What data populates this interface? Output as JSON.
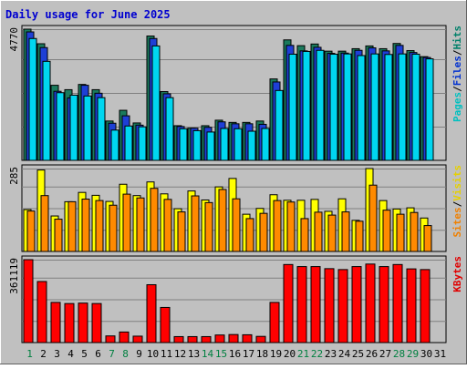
{
  "title": "Daily usage for June 2025",
  "chart_data": [
    {
      "type": "bar",
      "panel": "hits-files-pages",
      "categories": [
        "1",
        "2",
        "3",
        "4",
        "5",
        "6",
        "7",
        "8",
        "9",
        "10",
        "11",
        "12",
        "13",
        "14",
        "15",
        "16",
        "17",
        "18",
        "19",
        "20",
        "21",
        "22",
        "23",
        "24",
        "25",
        "26",
        "27",
        "28",
        "29",
        "30",
        "31"
      ],
      "weekend_days": [
        "1",
        "7",
        "8",
        "14",
        "15",
        "21",
        "22",
        "28",
        "29"
      ],
      "ymax_label": "4770",
      "ylim": [
        0,
        4770
      ],
      "ylabels": [
        {
          "text": "Pages",
          "color": "#00c0c0"
        },
        {
          "text": "/",
          "color": "#000000"
        },
        {
          "text": "Files",
          "color": "#0030d0"
        },
        {
          "text": "/",
          "color": "#000000"
        },
        {
          "text": "Hits",
          "color": "#00806a"
        }
      ],
      "series": [
        {
          "key": "Hits",
          "color": "#1a7a5c",
          "values": [
            4770,
            4240,
            2730,
            2570,
            2760,
            2570,
            1430,
            1820,
            1360,
            4520,
            2500,
            1260,
            1170,
            1260,
            1460,
            1380,
            1380,
            1430,
            2960,
            4380,
            4170,
            4230,
            3970,
            3970,
            4060,
            4160,
            4060,
            4250,
            3990,
            3770,
            null
          ]
        },
        {
          "key": "Files",
          "color": "#1e3fd6",
          "values": [
            4670,
            4100,
            2510,
            2270,
            2730,
            2440,
            1350,
            1620,
            1280,
            4430,
            2420,
            1230,
            1170,
            1200,
            1400,
            1330,
            1330,
            1310,
            2850,
            4180,
            3980,
            4110,
            3890,
            3900,
            4000,
            4090,
            3980,
            4180,
            3920,
            3740,
            null
          ]
        },
        {
          "key": "Pages",
          "color": "#00d6f0",
          "values": [
            4430,
            3600,
            2460,
            2370,
            2340,
            2280,
            1100,
            1250,
            1220,
            4160,
            2280,
            1150,
            1080,
            1030,
            1160,
            1150,
            1060,
            1160,
            2540,
            3860,
            3960,
            4000,
            3860,
            3870,
            3810,
            3870,
            3850,
            3870,
            3860,
            3690,
            null
          ]
        }
      ]
    },
    {
      "type": "bar",
      "panel": "sites-visits",
      "categories": [
        "1",
        "2",
        "3",
        "4",
        "5",
        "6",
        "7",
        "8",
        "9",
        "10",
        "11",
        "12",
        "13",
        "14",
        "15",
        "16",
        "17",
        "18",
        "19",
        "20",
        "21",
        "22",
        "23",
        "24",
        "25",
        "26",
        "27",
        "28",
        "29",
        "30",
        "31"
      ],
      "ymax_label": "285",
      "ylim": [
        0,
        285
      ],
      "ylabels": [
        {
          "text": "Sites",
          "color": "#f08000"
        },
        {
          "text": "/",
          "color": "#000000"
        },
        {
          "text": "Visits",
          "color": "#e6d000"
        }
      ],
      "series": [
        {
          "key": "Visits",
          "color": "#ffff00",
          "values": [
            144,
            280,
            122,
            171,
            203,
            193,
            172,
            231,
            192,
            239,
            198,
            147,
            208,
            177,
            222,
            251,
            128,
            148,
            195,
            176,
            176,
            179,
            138,
            181,
            107,
            285,
            175,
            146,
            150,
            115,
            null
          ]
        },
        {
          "key": "Sites",
          "color": "#ff8a00",
          "values": [
            139,
            192,
            111,
            171,
            180,
            175,
            159,
            197,
            184,
            217,
            179,
            136,
            191,
            168,
            213,
            181,
            113,
            131,
            175,
            170,
            113,
            135,
            125,
            136,
            104,
            228,
            142,
            128,
            134,
            89,
            null
          ]
        }
      ]
    },
    {
      "type": "bar",
      "panel": "kbytes",
      "categories": [
        "1",
        "2",
        "3",
        "4",
        "5",
        "6",
        "7",
        "8",
        "9",
        "10",
        "11",
        "12",
        "13",
        "14",
        "15",
        "16",
        "17",
        "18",
        "19",
        "20",
        "21",
        "22",
        "23",
        "24",
        "25",
        "26",
        "27",
        "28",
        "29",
        "30",
        "31"
      ],
      "ymax_label": "361119",
      "ylim": [
        0,
        361119
      ],
      "ylabels": [
        {
          "text": "KBytes",
          "color": "#e00000"
        }
      ],
      "series": [
        {
          "key": "KBytes",
          "color": "#ff0000",
          "values": [
            361119,
            266000,
            175000,
            170000,
            172000,
            170000,
            29000,
            46000,
            28000,
            252000,
            153000,
            26000,
            26000,
            26000,
            33000,
            35000,
            34000,
            27000,
            175000,
            340000,
            331000,
            331000,
            322000,
            318000,
            331000,
            342000,
            331000,
            340000,
            321000,
            318000,
            null
          ]
        }
      ]
    }
  ]
}
